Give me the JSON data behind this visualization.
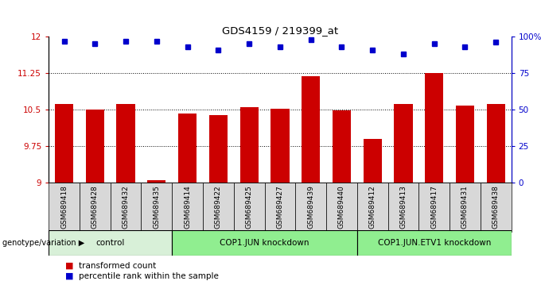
{
  "title": "GDS4159 / 219399_at",
  "samples": [
    "GSM689418",
    "GSM689428",
    "GSM689432",
    "GSM689435",
    "GSM689414",
    "GSM689422",
    "GSM689425",
    "GSM689427",
    "GSM689439",
    "GSM689440",
    "GSM689412",
    "GSM689413",
    "GSM689417",
    "GSM689431",
    "GSM689438"
  ],
  "bar_values": [
    10.62,
    10.5,
    10.62,
    9.05,
    10.42,
    10.38,
    10.55,
    10.52,
    11.18,
    10.48,
    9.9,
    10.62,
    11.25,
    10.58,
    10.62
  ],
  "dot_values": [
    97,
    95,
    97,
    97,
    93,
    91,
    95,
    93,
    98,
    93,
    91,
    88,
    95,
    93,
    96
  ],
  "groups": [
    {
      "label": "control",
      "start": 0,
      "end": 4,
      "color": "#d8f0d8"
    },
    {
      "label": "COP1.JUN knockdown",
      "start": 4,
      "end": 10,
      "color": "#90ee90"
    },
    {
      "label": "COP1.JUN.ETV1 knockdown",
      "start": 10,
      "end": 15,
      "color": "#90ee90"
    }
  ],
  "bar_color": "#cc0000",
  "dot_color": "#0000cc",
  "ylim_left": [
    9.0,
    12.0
  ],
  "ylim_right": [
    0,
    100
  ],
  "yticks_left": [
    9.0,
    9.75,
    10.5,
    11.25,
    12.0
  ],
  "yticks_right": [
    0,
    25,
    50,
    75,
    100
  ],
  "ytick_labels_left": [
    "9",
    "9.75",
    "10.5",
    "11.25",
    "12"
  ],
  "ytick_labels_right": [
    "0",
    "25",
    "50",
    "75",
    "100%"
  ],
  "grid_lines": [
    9.75,
    10.5,
    11.25
  ],
  "bar_width": 0.6,
  "legend_items": [
    {
      "color": "#cc0000",
      "label": "transformed count"
    },
    {
      "color": "#0000cc",
      "label": "percentile rank within the sample"
    }
  ],
  "genotype_label": "genotype/variation"
}
